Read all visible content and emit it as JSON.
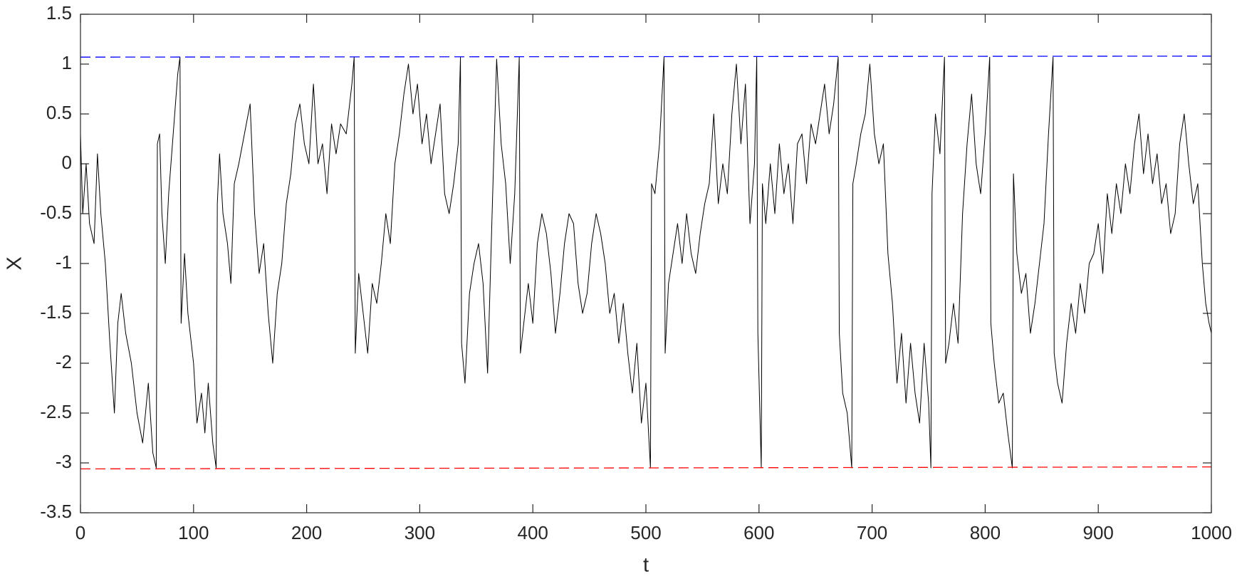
{
  "chart_data": {
    "type": "line",
    "xlabel": "t",
    "ylabel": "X",
    "xlim": [
      0,
      1000
    ],
    "xticks": [
      0,
      100,
      200,
      300,
      400,
      500,
      600,
      700,
      800,
      900,
      1000
    ],
    "ylim": [
      -3.5,
      1.5
    ],
    "yticks": [
      -3.5,
      -3,
      -2.5,
      -2,
      -1.5,
      -1,
      -0.5,
      0,
      0.5,
      1,
      1.5
    ],
    "grid": false,
    "box": true,
    "series": [
      {
        "color": "#000000",
        "line_style": "solid",
        "x": [
          0,
          2,
          5,
          8,
          12,
          15,
          18,
          22,
          26,
          30,
          33,
          36,
          40,
          45,
          50,
          55,
          60,
          64,
          67,
          68,
          70,
          72,
          75,
          78,
          82,
          86,
          88,
          89,
          92,
          95,
          100,
          103,
          107,
          110,
          113,
          117,
          120,
          121,
          123,
          126,
          130,
          133,
          136,
          140,
          145,
          150,
          154,
          158,
          162,
          166,
          170,
          174,
          178,
          182,
          186,
          190,
          194,
          198,
          202,
          206,
          210,
          214,
          218,
          222,
          226,
          230,
          235,
          240,
          242,
          243,
          246,
          250,
          254,
          258,
          262,
          266,
          270,
          274,
          278,
          282,
          286,
          290,
          294,
          298,
          302,
          306,
          310,
          314,
          318,
          322,
          326,
          330,
          334,
          336,
          337,
          340,
          344,
          348,
          352,
          356,
          360,
          364,
          368,
          372,
          376,
          380,
          384,
          388,
          389,
          392,
          396,
          400,
          404,
          408,
          412,
          416,
          420,
          424,
          428,
          432,
          436,
          440,
          444,
          448,
          452,
          456,
          460,
          464,
          468,
          472,
          476,
          480,
          484,
          488,
          492,
          496,
          500,
          504,
          505,
          508,
          512,
          516,
          517,
          520,
          524,
          528,
          532,
          536,
          540,
          544,
          548,
          552,
          556,
          560,
          564,
          568,
          572,
          576,
          580,
          584,
          588,
          592,
          596,
          598,
          599,
          602,
          603,
          606,
          610,
          614,
          618,
          622,
          626,
          630,
          634,
          638,
          642,
          646,
          650,
          654,
          658,
          662,
          666,
          670,
          671,
          674,
          678,
          682,
          683,
          686,
          690,
          694,
          698,
          702,
          706,
          710,
          714,
          718,
          722,
          726,
          730,
          734,
          738,
          742,
          746,
          750,
          752,
          753,
          756,
          760,
          764,
          765,
          768,
          772,
          776,
          780,
          784,
          788,
          792,
          796,
          800,
          804,
          805,
          808,
          812,
          816,
          820,
          824,
          825,
          828,
          832,
          836,
          840,
          844,
          848,
          852,
          856,
          860,
          861,
          864,
          868,
          872,
          876,
          880,
          884,
          888,
          892,
          896,
          900,
          904,
          908,
          912,
          916,
          920,
          924,
          928,
          932,
          936,
          940,
          944,
          948,
          952,
          956,
          960,
          964,
          968,
          972,
          976,
          980,
          984,
          988,
          992,
          995,
          998,
          1000
        ],
        "values": [
          0.3,
          -0.5,
          0,
          -0.6,
          -0.8,
          0.1,
          -0.5,
          -1.0,
          -1.8,
          -2.5,
          -1.6,
          -1.3,
          -1.7,
          -2.0,
          -2.5,
          -2.8,
          -2.2,
          -2.9,
          -3.05,
          0.2,
          0.3,
          -0.5,
          -1.0,
          -0.3,
          0.3,
          0.9,
          1.07,
          -1.6,
          -0.9,
          -1.5,
          -2.0,
          -2.6,
          -2.3,
          -2.7,
          -2.2,
          -2.8,
          -3.05,
          -0.4,
          0.1,
          -0.5,
          -0.8,
          -1.2,
          -0.2,
          0.0,
          0.3,
          0.6,
          -0.5,
          -1.1,
          -0.8,
          -1.5,
          -2.0,
          -1.3,
          -1.0,
          -0.4,
          -0.1,
          0.4,
          0.6,
          0.2,
          0.0,
          0.8,
          0.0,
          0.2,
          -0.3,
          0.4,
          0.1,
          0.4,
          0.3,
          0.8,
          1.07,
          -1.9,
          -1.1,
          -1.5,
          -1.9,
          -1.2,
          -1.4,
          -1.0,
          -0.5,
          -0.8,
          0.0,
          0.3,
          0.7,
          1.0,
          0.5,
          0.8,
          0.2,
          0.5,
          0.0,
          0.3,
          0.6,
          -0.3,
          -0.5,
          -0.2,
          0.2,
          1.07,
          -1.8,
          -2.2,
          -1.3,
          -1.0,
          -0.8,
          -1.2,
          -2.1,
          -0.5,
          1.05,
          0.2,
          -0.2,
          -1.0,
          -0.3,
          1.07,
          -1.9,
          -1.6,
          -1.2,
          -1.6,
          -0.8,
          -0.5,
          -0.7,
          -1.1,
          -1.7,
          -1.3,
          -0.8,
          -0.5,
          -0.6,
          -1.2,
          -1.5,
          -1.3,
          -0.8,
          -0.5,
          -0.7,
          -1.0,
          -1.5,
          -1.3,
          -1.8,
          -1.4,
          -1.9,
          -2.3,
          -1.8,
          -2.6,
          -2.2,
          -3.05,
          -0.2,
          -0.3,
          0.2,
          1.07,
          -1.9,
          -1.2,
          -0.9,
          -0.6,
          -1.0,
          -0.5,
          -0.9,
          -1.1,
          -0.7,
          -0.4,
          -0.2,
          0.5,
          -0.4,
          0.0,
          -0.3,
          0.5,
          1.0,
          0.2,
          0.8,
          -0.6,
          0.0,
          1.07,
          -1.7,
          -3.05,
          -0.2,
          -0.6,
          0.0,
          -0.5,
          0.2,
          -0.3,
          0.0,
          -0.6,
          0.2,
          0.3,
          -0.2,
          0.4,
          0.2,
          0.5,
          0.8,
          0.3,
          0.6,
          1.07,
          -1.7,
          -2.3,
          -2.5,
          -3.05,
          -0.2,
          0.0,
          0.3,
          0.5,
          1.0,
          0.3,
          0.0,
          0.2,
          -0.9,
          -1.4,
          -2.2,
          -1.7,
          -2.4,
          -1.8,
          -2.3,
          -2.6,
          -1.8,
          -2.4,
          -3.05,
          -0.3,
          0.5,
          0.1,
          1.07,
          -2.0,
          -1.8,
          -1.4,
          -1.8,
          -0.5,
          0.2,
          0.7,
          0.0,
          -0.3,
          0.3,
          1.07,
          -1.6,
          -2.0,
          -2.4,
          -2.3,
          -2.7,
          -3.05,
          -0.1,
          -0.9,
          -1.3,
          -1.1,
          -1.7,
          -1.4,
          -1.0,
          -0.6,
          0.3,
          1.07,
          -1.9,
          -2.2,
          -2.4,
          -1.8,
          -1.4,
          -1.7,
          -1.2,
          -1.5,
          -1.0,
          -0.9,
          -0.6,
          -1.1,
          -0.3,
          -0.7,
          -0.2,
          -0.5,
          0.0,
          -0.3,
          0.2,
          0.5,
          -0.1,
          0.3,
          -0.2,
          0.1,
          -0.4,
          -0.2,
          -0.7,
          -0.5,
          0.2,
          0.5,
          0.0,
          -0.4,
          -0.2,
          -1.0,
          -1.4,
          -1.6,
          -1.7
        ]
      },
      {
        "color": "#0000ff",
        "line_style": "dashed",
        "x": [
          0,
          1000
        ],
        "values": [
          1.07,
          1.08
        ]
      },
      {
        "color": "#ff0000",
        "line_style": "dashed",
        "x": [
          0,
          1000
        ],
        "values": [
          -3.06,
          -3.04
        ]
      }
    ]
  }
}
